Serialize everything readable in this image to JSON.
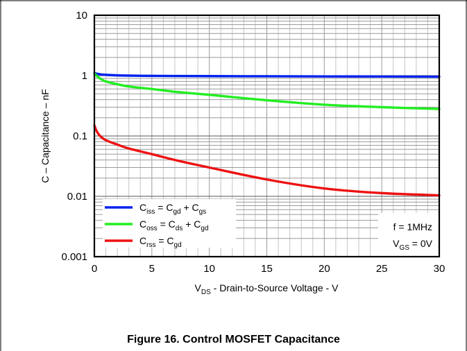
{
  "chart_data": {
    "type": "line",
    "title": "",
    "xlabel": "V_DS - Drain-to-Source Voltage - V",
    "ylabel": "C – Capacitance – nF",
    "xlim": [
      0,
      30
    ],
    "ylim": [
      0.001,
      10
    ],
    "yscale": "log",
    "x_ticks": [
      "0",
      "5",
      "10",
      "15",
      "20",
      "25",
      "30"
    ],
    "y_ticks": [
      "0.001",
      "0.01",
      "0.1",
      "1",
      "10"
    ],
    "grid": true,
    "legend_position": "bottom-left",
    "series": [
      {
        "name": "Ciss = Cgd + Cgs",
        "color": "#0022ee",
        "x": [
          0,
          0.5,
          1,
          2,
          3,
          5,
          7,
          10,
          15,
          20,
          25,
          30
        ],
        "y": [
          1.1,
          1.05,
          1.03,
          1.01,
          1.0,
          0.99,
          0.985,
          0.98,
          0.975,
          0.97,
          0.965,
          0.96
        ]
      },
      {
        "name": "Coss = Cds + Cgd",
        "color": "#22ee22",
        "x": [
          0,
          0.3,
          0.7,
          1,
          2,
          3,
          5,
          7,
          10,
          15,
          20,
          25,
          30
        ],
        "y": [
          1.1,
          0.95,
          0.85,
          0.8,
          0.72,
          0.66,
          0.6,
          0.54,
          0.48,
          0.39,
          0.33,
          0.3,
          0.28
        ]
      },
      {
        "name": "Crss = Cgd",
        "color": "#ee1111",
        "x": [
          0,
          0.2,
          0.5,
          1,
          2,
          3,
          5,
          7,
          10,
          15,
          20,
          25,
          30
        ],
        "y": [
          0.15,
          0.12,
          0.1,
          0.085,
          0.072,
          0.062,
          0.05,
          0.04,
          0.03,
          0.019,
          0.0135,
          0.0113,
          0.0104
        ]
      }
    ],
    "legend": [
      {
        "main": "C",
        "sub": "iss",
        "mid1": " = C",
        "sub1": "gd",
        "mid2": " + C",
        "sub2": "gs"
      },
      {
        "main": "C",
        "sub": "oss",
        "mid1": " = C",
        "sub1": "ds",
        "mid2": " + C",
        "sub2": "gd"
      },
      {
        "main": "C",
        "sub": "rss",
        "mid1": " =  C",
        "sub1": "gd",
        "mid2": "",
        "sub2": ""
      }
    ],
    "annotations": {
      "freq": "f = 1MHz",
      "vgs_main": "V",
      "vgs_sub": "GS",
      "vgs_rest": " = 0V"
    },
    "xlabel_parts": {
      "main": "V",
      "sub": "DS",
      "rest": " - Drain-to-Source Voltage - V"
    }
  },
  "caption": "Figure 16. Control MOSFET Capacitance"
}
